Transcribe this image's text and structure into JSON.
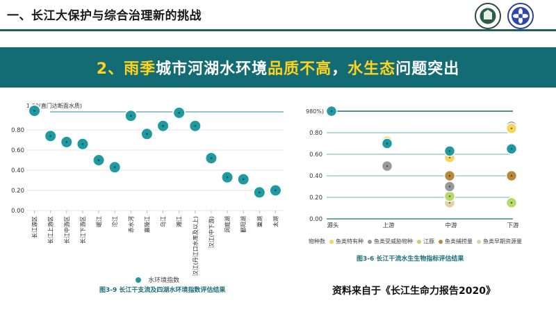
{
  "header": {
    "title": "一、长江大保护与综合治理新的挑战"
  },
  "banner": {
    "parts": [
      {
        "text": "2、",
        "highlight": true
      },
      {
        "text": "雨季",
        "highlight": true
      },
      {
        "text": "城市河湖水环境",
        "highlight": false
      },
      {
        "text": "品质不高",
        "highlight": true
      },
      {
        "text": "，",
        "highlight": false
      },
      {
        "text": "水生态",
        "highlight": true
      },
      {
        "text": "问题突出",
        "highlight": false
      }
    ]
  },
  "colors": {
    "brand": "#136c74",
    "highlight": "#ffd21f",
    "rule": "#1f5f63"
  },
  "logos": [
    "university-seal-icon",
    "society-emblem-icon"
  ],
  "chart_data": [
    {
      "type": "scatter",
      "ylabel_top": "1.00(直门达断面水质)",
      "ylim": [
        0,
        1.0
      ],
      "yticks": [
        "0.00",
        "0.20",
        "0.40",
        "0.60",
        "0.80"
      ],
      "categories": [
        "长江源区",
        "长江上游区",
        "长江中游区",
        "长江下游区",
        "岷江",
        "沱江",
        "赤水河",
        "嘉陵江",
        "乌江",
        "湘江",
        "汉江(丹江口水库及以上)",
        "汉江(中下游)",
        "洞庭湖",
        "鄱阳湖",
        "巢湖",
        "太湖"
      ],
      "series": [
        {
          "name": "水环境指数",
          "color": "#1e9aa0",
          "values": [
            0.99,
            0.74,
            0.68,
            0.66,
            0.5,
            0.43,
            0.94,
            0.76,
            0.84,
            0.97,
            0.84,
            0.52,
            0.33,
            0.31,
            0.18,
            0.2
          ]
        }
      ],
      "caption": "图3-9 长江干支流及四湖水环境指数评估结果"
    },
    {
      "type": "scatter",
      "ylabel_top": "980%)",
      "ylim": [
        0,
        1.0
      ],
      "yticks": [
        "0.00",
        "0.20",
        "0.40",
        "0.60",
        "0.80"
      ],
      "categories": [
        "源头",
        "上游",
        "中游",
        "下游"
      ],
      "series": [
        {
          "name": "物种数",
          "color": "#1e9aa0",
          "values": [
            1.0,
            0.7,
            0.63,
            0.65
          ]
        },
        {
          "name": "鱼类特有种",
          "color": "#f6d55c",
          "values": [
            null,
            0.72,
            0.57,
            0.84
          ]
        },
        {
          "name": "鱼类受威胁物种",
          "color": "#999999",
          "values": [
            null,
            0.49,
            0.3,
            0.86
          ]
        },
        {
          "name": "江豚",
          "color": "#b5d96b",
          "values": [
            null,
            null,
            0.21,
            0.15
          ]
        },
        {
          "name": "鱼类捕捞量",
          "color": "#b8893a",
          "values": [
            null,
            null,
            0.4,
            0.4
          ]
        },
        {
          "name": "鱼类早期资源量",
          "color": "#ddd1aa",
          "values": [
            null,
            null,
            0.15,
            null
          ]
        }
      ],
      "caption": "图3-6 长江干流水生生物指标评估结果"
    }
  ],
  "source_note": "资料来自于《长江生命力报告2020》"
}
